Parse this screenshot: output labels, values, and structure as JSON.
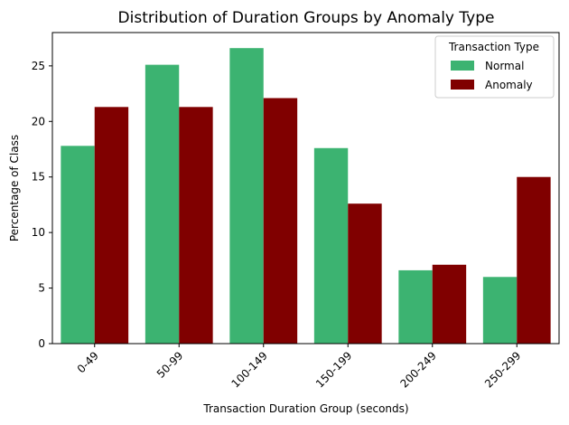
{
  "chart_data": {
    "type": "bar",
    "title": "Distribution of Duration Groups by Anomaly Type",
    "xlabel": "Transaction Duration Group (seconds)",
    "ylabel": "Percentage of Class",
    "categories": [
      "0-49",
      "50-99",
      "100-149",
      "150-199",
      "200-249",
      "250-299"
    ],
    "series": [
      {
        "name": "Normal",
        "color": "#3cb371",
        "values": [
          17.8,
          25.1,
          26.6,
          17.6,
          6.6,
          6.0
        ]
      },
      {
        "name": "Anomaly",
        "color": "#800000",
        "values": [
          21.3,
          21.3,
          22.1,
          12.6,
          7.1,
          15.0
        ]
      }
    ],
    "ylim": [
      0,
      28
    ],
    "yticks": [
      0,
      5,
      10,
      15,
      20,
      25
    ],
    "legend": {
      "title": "Transaction Type",
      "placement": "top-right"
    },
    "grid": false
  }
}
